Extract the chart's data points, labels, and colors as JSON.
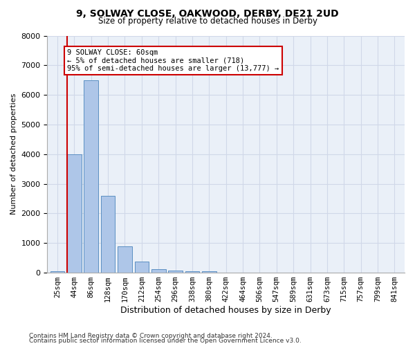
{
  "title1": "9, SOLWAY CLOSE, OAKWOOD, DERBY, DE21 2UD",
  "title2": "Size of property relative to detached houses in Derby",
  "xlabel": "Distribution of detached houses by size in Derby",
  "ylabel": "Number of detached properties",
  "categories": [
    "25sqm",
    "44sqm",
    "86sqm",
    "128sqm",
    "170sqm",
    "212sqm",
    "254sqm",
    "296sqm",
    "338sqm",
    "380sqm",
    "422sqm",
    "464sqm",
    "506sqm",
    "547sqm",
    "589sqm",
    "631sqm",
    "673sqm",
    "715sqm",
    "757sqm",
    "799sqm",
    "841sqm"
  ],
  "values": [
    50,
    4000,
    6500,
    2600,
    900,
    380,
    130,
    70,
    40,
    60,
    0,
    0,
    0,
    0,
    0,
    0,
    0,
    0,
    0,
    0,
    0
  ],
  "bar_color": "#aec6e8",
  "bar_edge_color": "#5a8fc2",
  "vline_color": "#cc0000",
  "annotation_box_text": "9 SOLWAY CLOSE: 60sqm\n← 5% of detached houses are smaller (718)\n95% of semi-detached houses are larger (13,777) →",
  "annotation_box_color": "#cc0000",
  "ylim": [
    0,
    8000
  ],
  "yticks": [
    0,
    1000,
    2000,
    3000,
    4000,
    5000,
    6000,
    7000,
    8000
  ],
  "grid_color": "#d0d8e8",
  "bg_color": "#eaf0f8",
  "footer1": "Contains HM Land Registry data © Crown copyright and database right 2024.",
  "footer2": "Contains public sector information licensed under the Open Government Licence v3.0."
}
